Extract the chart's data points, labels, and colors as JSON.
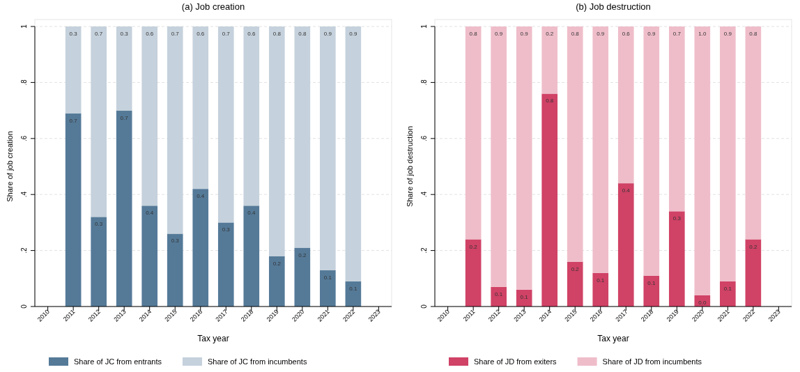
{
  "chart_data": [
    {
      "type": "bar",
      "title": "(a) Job creation",
      "xlabel": "Tax year",
      "ylabel": "Share of job creation",
      "stacked": true,
      "grid": "y",
      "legend": "bottom",
      "categories": [
        "2010",
        "2011",
        "2012",
        "2013",
        "2014",
        "2015",
        "2016",
        "2017",
        "2018",
        "2019",
        "2020",
        "2021",
        "2022",
        "2023"
      ],
      "ylim": [
        0,
        1
      ],
      "yticks": [
        {
          "value": 0,
          "label": "0"
        },
        {
          "value": 0.2,
          "label": ".2"
        },
        {
          "value": 0.4,
          "label": ".4"
        },
        {
          "value": 0.6,
          "label": ".6"
        },
        {
          "value": 0.8,
          "label": ".8"
        },
        {
          "value": 1,
          "label": "1"
        }
      ],
      "series": [
        {
          "name": "Share of JC from entrants",
          "color": "#557a98",
          "values": [
            null,
            0.69,
            0.32,
            0.7,
            0.36,
            0.26,
            0.42,
            0.3,
            0.36,
            0.18,
            0.21,
            0.13,
            0.09,
            null
          ],
          "value_labels": [
            null,
            "0.7",
            "0.3",
            "0.7",
            "0.4",
            "0.3",
            "0.4",
            "0.3",
            "0.4",
            "0.2",
            "0.2",
            "0.1",
            "0.1",
            null
          ]
        },
        {
          "name": "Share of JC from incumbents",
          "color": "#c5d1dc",
          "values": [
            null,
            0.31,
            0.68,
            0.3,
            0.64,
            0.74,
            0.58,
            0.7,
            0.64,
            0.82,
            0.79,
            0.87,
            0.91,
            null
          ],
          "value_labels": [
            null,
            "0.3",
            "0.7",
            "0.3",
            "0.6",
            "0.7",
            "0.6",
            "0.7",
            "0.6",
            "0.8",
            "0.8",
            "0.9",
            "0.9",
            null
          ]
        }
      ]
    },
    {
      "type": "bar",
      "title": "(b) Job destruction",
      "xlabel": "Tax year",
      "ylabel": "Share of job destruction",
      "stacked": true,
      "grid": "y",
      "legend": "bottom",
      "categories": [
        "2010",
        "2011",
        "2012",
        "2013",
        "2014",
        "2015",
        "2016",
        "2017",
        "2018",
        "2019",
        "2020",
        "2021",
        "2022",
        "2023"
      ],
      "ylim": [
        0,
        1
      ],
      "yticks": [
        {
          "value": 0,
          "label": "0"
        },
        {
          "value": 0.2,
          "label": ".2"
        },
        {
          "value": 0.4,
          "label": ".4"
        },
        {
          "value": 0.6,
          "label": ".6"
        },
        {
          "value": 0.8,
          "label": ".8"
        },
        {
          "value": 1,
          "label": "1"
        }
      ],
      "series": [
        {
          "name": "Share of JD from exiters",
          "color": "#d04266",
          "values": [
            null,
            0.24,
            0.07,
            0.06,
            0.76,
            0.16,
            0.12,
            0.44,
            0.11,
            0.34,
            0.04,
            0.09,
            0.24,
            null
          ],
          "value_labels": [
            null,
            "0.2",
            "0.1",
            "0.1",
            "0.8",
            "0.2",
            "0.1",
            "0.4",
            "0.1",
            "0.3",
            "0.0",
            "0.1",
            "0.2",
            null
          ]
        },
        {
          "name": "Share of JD from incumbents",
          "color": "#efbdca",
          "values": [
            null,
            0.76,
            0.93,
            0.94,
            0.24,
            0.84,
            0.88,
            0.56,
            0.89,
            0.66,
            0.96,
            0.91,
            0.76,
            null
          ],
          "value_labels": [
            null,
            "0.8",
            "0.9",
            "0.9",
            "0.2",
            "0.8",
            "0.9",
            "0.6",
            "0.9",
            "0.7",
            "1.0",
            "0.9",
            "0.8",
            null
          ]
        }
      ]
    }
  ]
}
